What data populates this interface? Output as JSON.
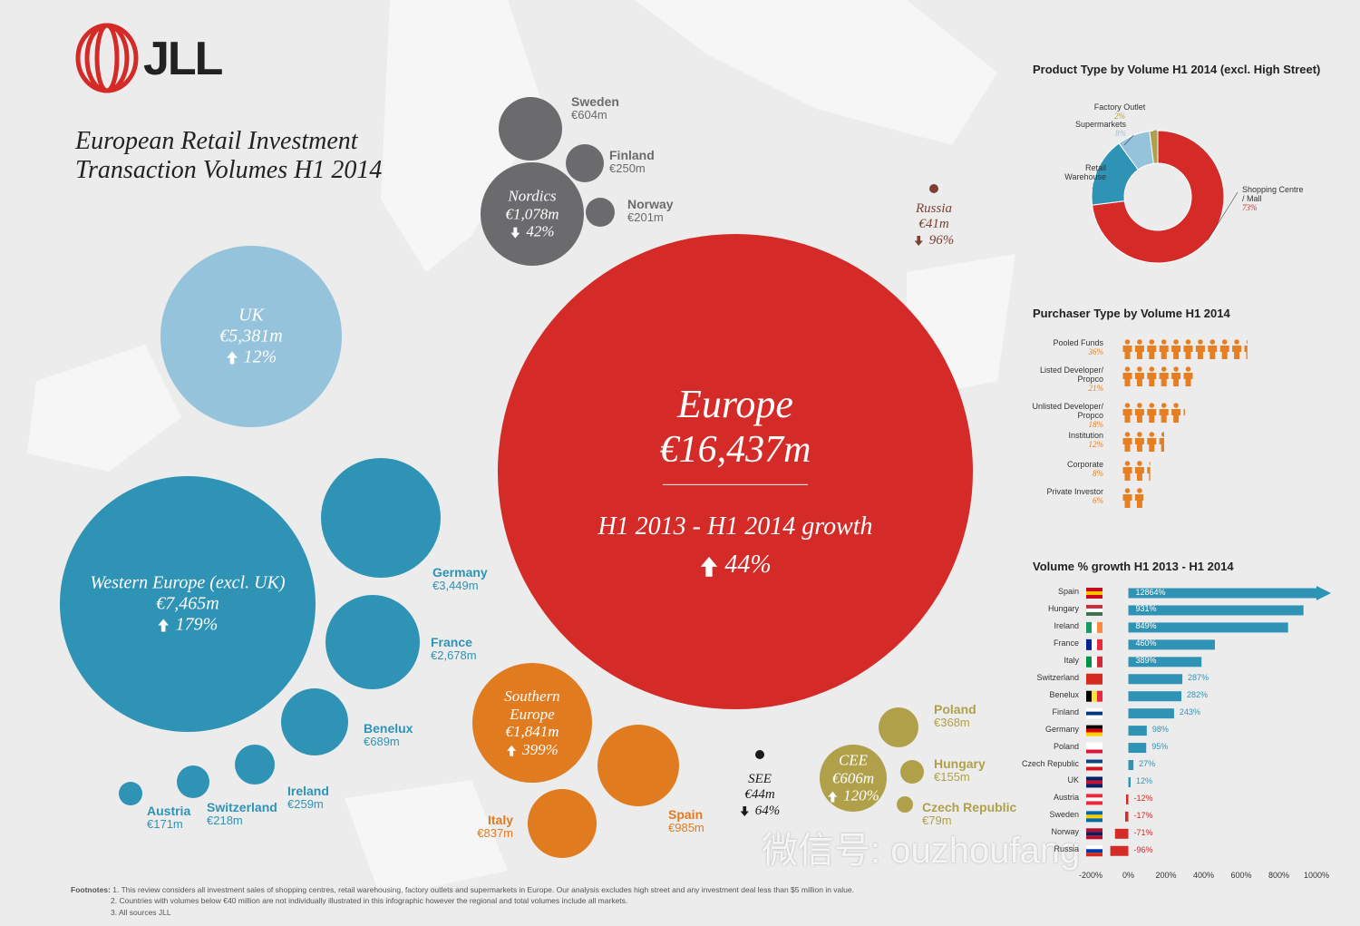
{
  "header": {
    "logo": "JLL",
    "title": [
      "European Retail Investment",
      "Transaction Volumes H1 2014"
    ],
    "watermark": "微信号: ouzhoufang"
  },
  "footnotes": {
    "label": "Footnotes:",
    "items": [
      "1. This review considers all investment sales of shopping centres, retail warehousing, factory outlets and supermarkets in Europe. Our analysis excludes high street and any investment deal less than $5 million in value.",
      "2. Countries with volumes below €40 million are not individually illustrated in this infographic however the regional and total volumes include all markets.",
      "3. All sources JLL"
    ]
  },
  "chart_data": [
    {
      "type": "bubble",
      "growth_caption": "H1 2013 - H1 2014 growth",
      "categories": [
        "Europe",
        "Western Europe (excl. UK)",
        "UK",
        "Germany",
        "France",
        "Benelux",
        "Ireland",
        "Switzerland",
        "Austria",
        "Nordics",
        "Sweden",
        "Finland",
        "Norway",
        "Southern Europe",
        "Spain",
        "Italy",
        "CEE",
        "Poland",
        "Hungary",
        "Czech Republic",
        "Russia",
        "SEE"
      ],
      "values": [
        16437,
        7465,
        5381,
        3449,
        2678,
        689,
        259,
        218,
        171,
        1078,
        604,
        250,
        201,
        1841,
        985,
        837,
        606,
        368,
        155,
        79,
        41,
        44
      ],
      "value_labels": [
        "€16,437m",
        "€7,465m",
        "€5,381m",
        "€3,449m",
        "€2,678m",
        "€689m",
        "€259m",
        "€218m",
        "€171m",
        "€1,078m",
        "€604m",
        "€250m",
        "€201m",
        "€1,841m",
        "€985m",
        "€837m",
        "€606m",
        "€368m",
        "€155m",
        "€79m",
        "€41m",
        "€44m"
      ],
      "growth": [
        44,
        179,
        12,
        null,
        null,
        null,
        null,
        null,
        null,
        -42,
        null,
        null,
        null,
        399,
        null,
        null,
        120,
        null,
        null,
        null,
        -96,
        -64
      ],
      "growth_labels": [
        "44%",
        "179%",
        "12%",
        null,
        null,
        null,
        null,
        null,
        null,
        "42%",
        null,
        null,
        null,
        "399%",
        null,
        null,
        "120%",
        null,
        null,
        null,
        "96%",
        "64%"
      ],
      "colors": [
        "#d42a28",
        "#2f93b6",
        "#95c3dc",
        "#2f93b6",
        "#2f93b6",
        "#2f93b6",
        "#2f93b6",
        "#2f93b6",
        "#2f93b6",
        "#6b6b6e",
        "#6b6b6e",
        "#6b6b6e",
        "#6b6b6e",
        "#e07b20",
        "#e07b20",
        "#e07b20",
        "#b0a04a",
        "#b0a04a",
        "#b0a04a",
        "#b0a04a",
        "#7a4031",
        "#1a1a1a"
      ]
    },
    {
      "type": "pie",
      "donut": true,
      "title": "Product Type by Volume H1 2014 (excl. High Street)",
      "categories": [
        "Shopping Centre / Mall",
        "Retail Warehouse",
        "Supermarkets",
        "Factory Outlet"
      ],
      "values": [
        73,
        17,
        8,
        2
      ],
      "value_labels": [
        "73%",
        "17%",
        "8%",
        "2%"
      ],
      "colors": [
        "#d42a28",
        "#2f93b6",
        "#95c3dc",
        "#b0a04a"
      ]
    },
    {
      "type": "pictograph",
      "title": "Purchaser Type by Volume H1 2014",
      "categories": [
        "Pooled Funds",
        "Listed Developer/ Propco",
        "Unlisted Developer/ Propco",
        "Institution",
        "Corporate",
        "Private Investor"
      ],
      "values": [
        36,
        21,
        18,
        12,
        8,
        6
      ],
      "value_labels": [
        "36%",
        "21%",
        "18%",
        "12%",
        "8%",
        "6%"
      ],
      "color": "#e67e22"
    },
    {
      "type": "bar",
      "orientation": "horizontal",
      "title": "Volume % growth H1 2013 - H1 2014",
      "categories": [
        "Spain",
        "Hungary",
        "Ireland",
        "France",
        "Italy",
        "Switzerland",
        "Benelux",
        "Finland",
        "Germany",
        "Poland",
        "Czech Republic",
        "UK",
        "Austria",
        "Sweden",
        "Norway",
        "Russia"
      ],
      "values": [
        12864,
        931,
        849,
        460,
        389,
        287,
        282,
        243,
        98,
        95,
        27,
        12,
        -12,
        -17,
        -71,
        -96
      ],
      "value_labels": [
        "12864%",
        "931%",
        "849%",
        "460%",
        "389%",
        "287%",
        "282%",
        "243%",
        "98%",
        "95%",
        "27%",
        "12%",
        "-12%",
        "-17%",
        "-71%",
        "-96%"
      ],
      "xlim": [
        -200,
        1000
      ],
      "xticks": [
        {
          "value": -200,
          "label": "-200%"
        },
        {
          "value": 0,
          "label": "0%"
        },
        {
          "value": 200,
          "label": "200%"
        },
        {
          "value": 400,
          "label": "400%"
        },
        {
          "value": 600,
          "label": "600%"
        },
        {
          "value": 800,
          "label": "800%"
        },
        {
          "value": 1000,
          "label": "1000%"
        }
      ],
      "grid": false,
      "color": "#2f93b6",
      "negative_color": "#d42a28"
    }
  ]
}
